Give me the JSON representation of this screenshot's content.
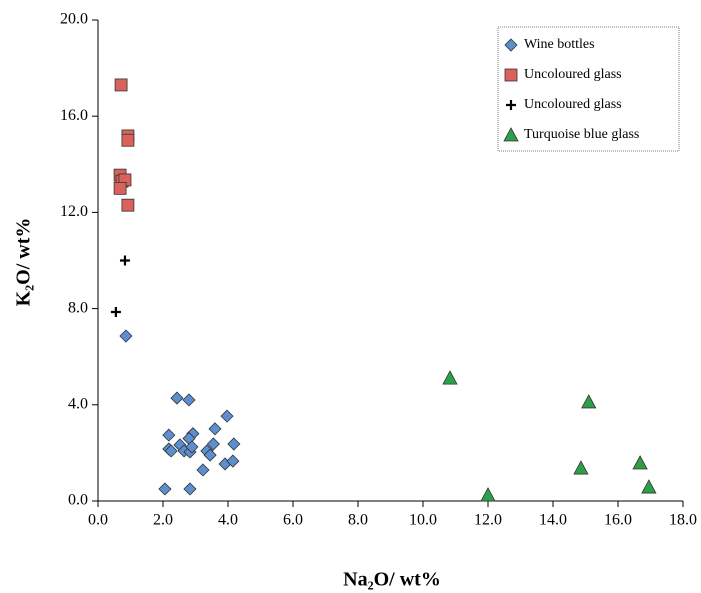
{
  "chart_data": {
    "type": "scatter",
    "x_label": "Na₂O/ wt%",
    "y_label": "K₂O/ wt%",
    "xlim": [
      0,
      18
    ],
    "ylim": [
      0,
      20
    ],
    "xticks": [
      {
        "value": 0,
        "label": "0.0"
      },
      {
        "value": 2,
        "label": "2.0"
      },
      {
        "value": 4,
        "label": "4.0"
      },
      {
        "value": 6,
        "label": "6.0"
      },
      {
        "value": 8,
        "label": "8.0"
      },
      {
        "value": 10,
        "label": "10.0"
      },
      {
        "value": 12,
        "label": "12.0"
      },
      {
        "value": 14,
        "label": "14.0"
      },
      {
        "value": 16,
        "label": "16.0"
      },
      {
        "value": 18,
        "label": "18.0"
      }
    ],
    "yticks": [
      {
        "value": 0,
        "label": "0.0"
      },
      {
        "value": 4,
        "label": "4.0"
      },
      {
        "value": 8,
        "label": "8.0"
      },
      {
        "value": 12,
        "label": "12.0"
      },
      {
        "value": 16,
        "label": "16.0"
      },
      {
        "value": 20,
        "label": "20.0"
      }
    ],
    "grid": false,
    "legend": "top-right",
    "series": [
      {
        "name": "Wine bottles",
        "color": "#5b8fd0",
        "marker": "diamond",
        "x": [
          0.86,
          2.43,
          2.8,
          3.97,
          2.18,
          2.92,
          2.8,
          3.6,
          2.18,
          2.25,
          2.52,
          2.65,
          2.83,
          2.89,
          3.35,
          3.45,
          3.55,
          4.18,
          3.23,
          3.91,
          4.15,
          2.06,
          2.83
        ],
        "y": [
          6.86,
          4.28,
          4.2,
          3.53,
          2.74,
          2.8,
          2.6,
          3.0,
          2.16,
          2.08,
          2.33,
          2.08,
          2.04,
          2.25,
          2.08,
          1.91,
          2.37,
          2.37,
          1.29,
          1.54,
          1.66,
          0.5,
          0.5
        ]
      },
      {
        "name": "Uncoloured glass",
        "color": "#d9625a",
        "marker": "square",
        "x": [
          0.71,
          0.92,
          0.92,
          0.68,
          0.74,
          0.83,
          0.68,
          0.92
        ],
        "y": [
          17.3,
          15.18,
          15.0,
          13.55,
          13.3,
          13.35,
          13.0,
          12.3
        ]
      },
      {
        "name": "Uncoloured glass",
        "color": "#000000",
        "marker": "plus",
        "x": [
          0.83,
          0.55
        ],
        "y": [
          10.0,
          7.86
        ]
      },
      {
        "name": "Turquoise blue glass",
        "color": "#2ca048",
        "marker": "triangle",
        "x": [
          10.83,
          12.0,
          15.1,
          14.86,
          16.68,
          16.95
        ],
        "y": [
          5.11,
          0.25,
          4.12,
          1.37,
          1.58,
          0.58
        ]
      }
    ]
  }
}
